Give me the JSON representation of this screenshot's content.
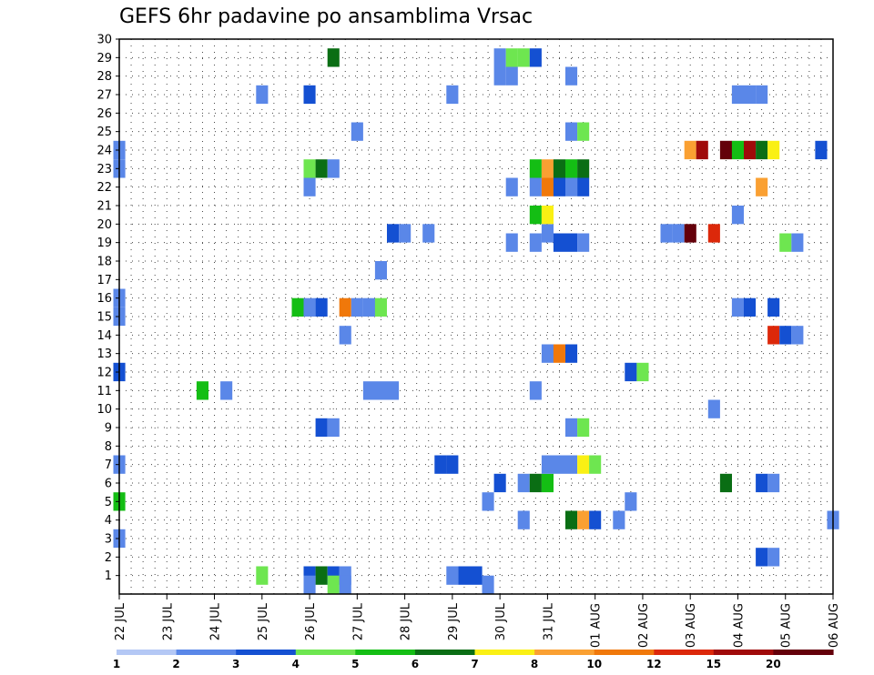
{
  "title": "GEFS 6hr padavine po ansamblima Vrsac",
  "chart_data": {
    "type": "heatmap",
    "x_unit": "6-hour step from 22 JUL 00Z",
    "x_ticks": [
      {
        "step": 0,
        "label": "22 JUL"
      },
      {
        "step": 4,
        "label": "23 JUL"
      },
      {
        "step": 8,
        "label": "24 JUL"
      },
      {
        "step": 12,
        "label": "25 JUL"
      },
      {
        "step": 16,
        "label": "26 JUL"
      },
      {
        "step": 20,
        "label": "27 JUL"
      },
      {
        "step": 24,
        "label": "28 JUL"
      },
      {
        "step": 28,
        "label": "29 JUL"
      },
      {
        "step": 32,
        "label": "30 JUL"
      },
      {
        "step": 36,
        "label": "31 JUL"
      },
      {
        "step": 40,
        "label": "01 AUG"
      },
      {
        "step": 44,
        "label": "02 AUG"
      },
      {
        "step": 48,
        "label": "03 AUG"
      },
      {
        "step": 52,
        "label": "04 AUG"
      },
      {
        "step": 56,
        "label": "05 AUG"
      },
      {
        "step": 60,
        "label": "06 AUG"
      }
    ],
    "xlim": [
      0,
      60
    ],
    "y_ticks": [
      1,
      2,
      3,
      4,
      5,
      6,
      7,
      8,
      9,
      10,
      11,
      12,
      13,
      14,
      15,
      16,
      17,
      18,
      19,
      20,
      21,
      22,
      23,
      24,
      25,
      26,
      27,
      28,
      29,
      30
    ],
    "ylim": [
      0,
      30
    ],
    "grid": true,
    "color_levels": [
      "1",
      "2",
      "3",
      "4",
      "5",
      "6",
      "7",
      "8",
      "10",
      "12",
      "15",
      "20"
    ],
    "color_bins": [
      "#b4c8f5",
      "#5a87e8",
      "#1450d2",
      "#6ee650",
      "#14be14",
      "#0a6e14",
      "#faf014",
      "#faa032",
      "#f0780a",
      "#dc280a",
      "#a00a0a",
      "#64000a"
    ],
    "cells": [
      {
        "x": 12,
        "y": 1,
        "c": 3
      },
      {
        "x": 16,
        "y": 1,
        "c": 2
      },
      {
        "x": 17,
        "y": 1,
        "c": 5
      },
      {
        "x": 18,
        "y": 1,
        "c": 2
      },
      {
        "x": 19,
        "y": 1,
        "c": 1
      },
      {
        "x": 28,
        "y": 1,
        "c": 1
      },
      {
        "x": 29,
        "y": 1,
        "c": 2
      },
      {
        "x": 30,
        "y": 1,
        "c": 2
      },
      {
        "x": 16,
        "y": 0.5,
        "c": 1
      },
      {
        "x": 18,
        "y": 0.5,
        "c": 3
      },
      {
        "x": 19,
        "y": 0.5,
        "c": 1
      },
      {
        "x": 31,
        "y": 0.5,
        "c": 1
      },
      {
        "x": 54,
        "y": 2,
        "c": 2
      },
      {
        "x": 55,
        "y": 2,
        "c": 1
      },
      {
        "x": 0,
        "y": 3,
        "c": 1
      },
      {
        "x": 34,
        "y": 4,
        "c": 1
      },
      {
        "x": 38,
        "y": 4,
        "c": 5
      },
      {
        "x": 39,
        "y": 4,
        "c": 7
      },
      {
        "x": 40,
        "y": 4,
        "c": 2
      },
      {
        "x": 42,
        "y": 4,
        "c": 1
      },
      {
        "x": 60,
        "y": 4,
        "c": 1
      },
      {
        "x": 0,
        "y": 5,
        "c": 4
      },
      {
        "x": 31,
        "y": 5,
        "c": 1
      },
      {
        "x": 43,
        "y": 5,
        "c": 1
      },
      {
        "x": 32,
        "y": 6,
        "c": 2
      },
      {
        "x": 34,
        "y": 6,
        "c": 1
      },
      {
        "x": 35,
        "y": 6,
        "c": 5
      },
      {
        "x": 36,
        "y": 6,
        "c": 4
      },
      {
        "x": 51,
        "y": 6,
        "c": 5
      },
      {
        "x": 54,
        "y": 6,
        "c": 2
      },
      {
        "x": 55,
        "y": 6,
        "c": 1
      },
      {
        "x": 0,
        "y": 7,
        "c": 1
      },
      {
        "x": 27,
        "y": 7,
        "c": 2
      },
      {
        "x": 28,
        "y": 7,
        "c": 2
      },
      {
        "x": 36,
        "y": 7,
        "c": 1
      },
      {
        "x": 37,
        "y": 7,
        "c": 1
      },
      {
        "x": 38,
        "y": 7,
        "c": 1
      },
      {
        "x": 39,
        "y": 7,
        "c": 6
      },
      {
        "x": 40,
        "y": 7,
        "c": 3
      },
      {
        "x": 17,
        "y": 9,
        "c": 2
      },
      {
        "x": 18,
        "y": 9,
        "c": 1
      },
      {
        "x": 38,
        "y": 9,
        "c": 1
      },
      {
        "x": 39,
        "y": 9,
        "c": 3
      },
      {
        "x": 50,
        "y": 10,
        "c": 1
      },
      {
        "x": 7,
        "y": 11,
        "c": 4
      },
      {
        "x": 9,
        "y": 11,
        "c": 1
      },
      {
        "x": 21,
        "y": 11,
        "c": 1
      },
      {
        "x": 22,
        "y": 11,
        "c": 1
      },
      {
        "x": 23,
        "y": 11,
        "c": 1
      },
      {
        "x": 35,
        "y": 11,
        "c": 1
      },
      {
        "x": 0,
        "y": 12,
        "c": 2
      },
      {
        "x": 43,
        "y": 12,
        "c": 2
      },
      {
        "x": 44,
        "y": 12,
        "c": 3
      },
      {
        "x": 36,
        "y": 13,
        "c": 1
      },
      {
        "x": 37,
        "y": 13,
        "c": 8
      },
      {
        "x": 38,
        "y": 13,
        "c": 2
      },
      {
        "x": 19,
        "y": 14,
        "c": 1
      },
      {
        "x": 55,
        "y": 14,
        "c": 9
      },
      {
        "x": 56,
        "y": 14,
        "c": 2
      },
      {
        "x": 57,
        "y": 14,
        "c": 1
      },
      {
        "x": 0,
        "y": 15,
        "c": 1
      },
      {
        "x": 0,
        "y": 16,
        "c": 1
      },
      {
        "x": 15,
        "y": 15.5,
        "c": 4
      },
      {
        "x": 16,
        "y": 15.5,
        "c": 1
      },
      {
        "x": 17,
        "y": 15.5,
        "c": 2
      },
      {
        "x": 19,
        "y": 15.5,
        "c": 8
      },
      {
        "x": 20,
        "y": 15.5,
        "c": 1
      },
      {
        "x": 21,
        "y": 15.5,
        "c": 1
      },
      {
        "x": 22,
        "y": 15.5,
        "c": 3
      },
      {
        "x": 52,
        "y": 15.5,
        "c": 1
      },
      {
        "x": 53,
        "y": 15.5,
        "c": 2
      },
      {
        "x": 55,
        "y": 15.5,
        "c": 2
      },
      {
        "x": 22,
        "y": 17.5,
        "c": 1
      },
      {
        "x": 33,
        "y": 19,
        "c": 1
      },
      {
        "x": 35,
        "y": 19,
        "c": 1
      },
      {
        "x": 37,
        "y": 19,
        "c": 2
      },
      {
        "x": 38,
        "y": 19,
        "c": 2
      },
      {
        "x": 39,
        "y": 19,
        "c": 1
      },
      {
        "x": 56,
        "y": 19,
        "c": 3
      },
      {
        "x": 57,
        "y": 19,
        "c": 1
      },
      {
        "x": 23,
        "y": 19.5,
        "c": 2
      },
      {
        "x": 24,
        "y": 19.5,
        "c": 1
      },
      {
        "x": 26,
        "y": 19.5,
        "c": 1
      },
      {
        "x": 36,
        "y": 19.5,
        "c": 1
      },
      {
        "x": 46,
        "y": 19.5,
        "c": 1
      },
      {
        "x": 47,
        "y": 19.5,
        "c": 1
      },
      {
        "x": 48,
        "y": 19.5,
        "c": 11
      },
      {
        "x": 50,
        "y": 19.5,
        "c": 9
      },
      {
        "x": 35,
        "y": 20.5,
        "c": 4
      },
      {
        "x": 36,
        "y": 20.5,
        "c": 6
      },
      {
        "x": 52,
        "y": 20.5,
        "c": 1
      },
      {
        "x": 16,
        "y": 22,
        "c": 1
      },
      {
        "x": 33,
        "y": 22,
        "c": 1
      },
      {
        "x": 35,
        "y": 22,
        "c": 1
      },
      {
        "x": 36,
        "y": 22,
        "c": 8
      },
      {
        "x": 37,
        "y": 22,
        "c": 2
      },
      {
        "x": 38,
        "y": 22,
        "c": 1
      },
      {
        "x": 39,
        "y": 22,
        "c": 2
      },
      {
        "x": 54,
        "y": 22,
        "c": 7
      },
      {
        "x": 0,
        "y": 23,
        "c": 1
      },
      {
        "x": 16,
        "y": 23,
        "c": 3
      },
      {
        "x": 17,
        "y": 23,
        "c": 5
      },
      {
        "x": 18,
        "y": 23,
        "c": 1
      },
      {
        "x": 35,
        "y": 23,
        "c": 4
      },
      {
        "x": 36,
        "y": 23,
        "c": 7
      },
      {
        "x": 37,
        "y": 23,
        "c": 5
      },
      {
        "x": 38,
        "y": 23,
        "c": 4
      },
      {
        "x": 39,
        "y": 23,
        "c": 5
      },
      {
        "x": 0,
        "y": 24,
        "c": 1
      },
      {
        "x": 48,
        "y": 24,
        "c": 7
      },
      {
        "x": 49,
        "y": 24,
        "c": 10
      },
      {
        "x": 51,
        "y": 24,
        "c": 11
      },
      {
        "x": 52,
        "y": 24,
        "c": 4
      },
      {
        "x": 53,
        "y": 24,
        "c": 10
      },
      {
        "x": 54,
        "y": 24,
        "c": 5
      },
      {
        "x": 55,
        "y": 24,
        "c": 6
      },
      {
        "x": 59,
        "y": 24,
        "c": 2
      },
      {
        "x": 20,
        "y": 25,
        "c": 1
      },
      {
        "x": 38,
        "y": 25,
        "c": 1
      },
      {
        "x": 39,
        "y": 25,
        "c": 3
      },
      {
        "x": 12,
        "y": 27,
        "c": 1
      },
      {
        "x": 16,
        "y": 27,
        "c": 2
      },
      {
        "x": 28,
        "y": 27,
        "c": 1
      },
      {
        "x": 52,
        "y": 27,
        "c": 1
      },
      {
        "x": 53,
        "y": 27,
        "c": 1
      },
      {
        "x": 54,
        "y": 27,
        "c": 1
      },
      {
        "x": 32,
        "y": 28,
        "c": 1
      },
      {
        "x": 33,
        "y": 28,
        "c": 1
      },
      {
        "x": 38,
        "y": 28,
        "c": 1
      },
      {
        "x": 18,
        "y": 29,
        "c": 5
      },
      {
        "x": 32,
        "y": 29,
        "c": 1
      },
      {
        "x": 33,
        "y": 29,
        "c": 3
      },
      {
        "x": 34,
        "y": 29,
        "c": 3
      },
      {
        "x": 35,
        "y": 29,
        "c": 2
      }
    ]
  }
}
